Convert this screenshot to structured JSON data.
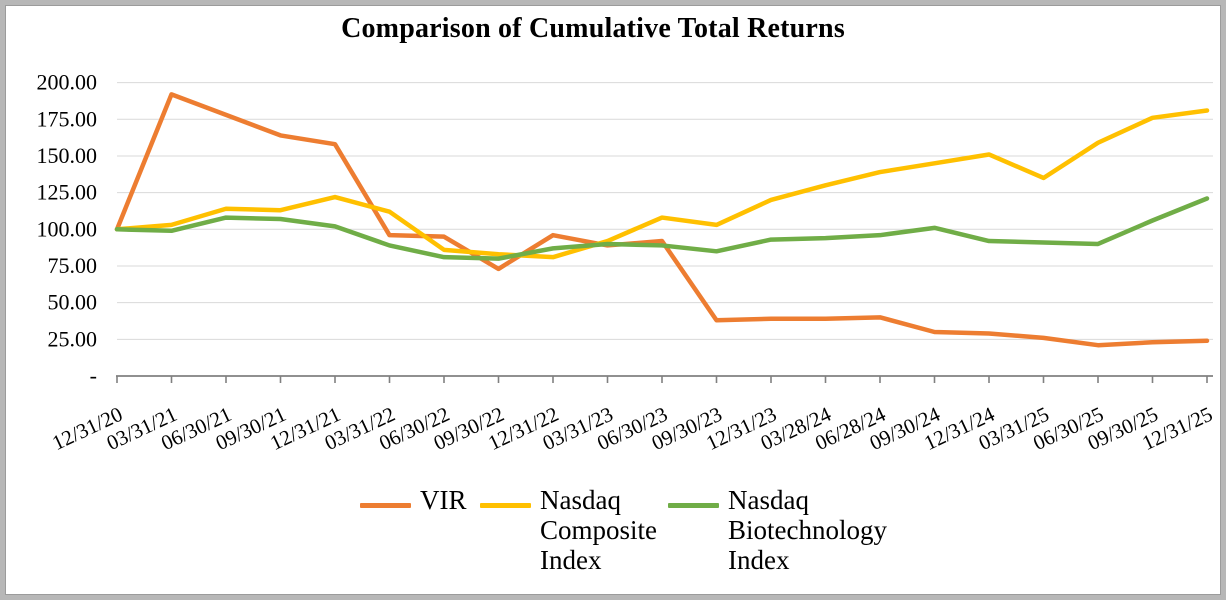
{
  "chart_data": {
    "type": "line",
    "title": "Comparison of Cumulative Total Returns",
    "categories": [
      "12/31/20",
      "03/31/21",
      "06/30/21",
      "09/30/21",
      "12/31/21",
      "03/31/22",
      "06/30/22",
      "09/30/22",
      "12/31/22",
      "03/31/23",
      "06/30/23",
      "09/30/23",
      "12/31/23",
      "03/28/24",
      "06/28/24",
      "09/30/24",
      "12/31/24",
      "03/31/25",
      "06/30/25",
      "09/30/25",
      "12/31/25"
    ],
    "series": [
      {
        "name": "VIR",
        "color": "#ED7D31",
        "values": [
          100,
          192,
          178,
          164,
          158,
          96,
          95,
          73,
          96,
          89,
          92,
          38,
          39,
          39,
          40,
          30,
          29,
          26,
          21,
          23,
          24
        ]
      },
      {
        "name": "Nasdaq Composite Index",
        "color": "#FFC000",
        "values": [
          100,
          103,
          114,
          113,
          122,
          112,
          86,
          83,
          81,
          92,
          108,
          103,
          120,
          130,
          139,
          145,
          151,
          135,
          159,
          176,
          181
        ]
      },
      {
        "name": "Nasdaq Biotechnology Index",
        "color": "#70AD47",
        "values": [
          100,
          99,
          108,
          107,
          102,
          89,
          81,
          80,
          87,
          90,
          89,
          85,
          93,
          94,
          96,
          101,
          92,
          91,
          90,
          106,
          121
        ]
      }
    ],
    "y_ticks": [
      {
        "label": "200.00",
        "value": 200
      },
      {
        "label": "175.00",
        "value": 175
      },
      {
        "label": "150.00",
        "value": 150
      },
      {
        "label": "125.00",
        "value": 125
      },
      {
        "label": "100.00",
        "value": 100
      },
      {
        "label": "75.00",
        "value": 75
      },
      {
        "label": "50.00",
        "value": 50
      },
      {
        "label": "25.00",
        "value": 25
      },
      {
        "label": "-",
        "value": 0
      }
    ],
    "ylim": [
      0,
      200
    ],
    "xlabel": "",
    "ylabel": "",
    "grid": true,
    "xlabel_rotation_deg": -25,
    "legend_position": "bottom",
    "gridline_color": "#d9d9d9",
    "axis_color": "#808080"
  },
  "legend": {
    "items": [
      {
        "label": "VIR",
        "series": "VIR"
      },
      {
        "label": "Nasdaq\nComposite\nIndex",
        "series": "Nasdaq Composite Index"
      },
      {
        "label": "Nasdaq\nBiotechnology\nIndex",
        "series": "Nasdaq Biotechnology Index"
      }
    ]
  }
}
